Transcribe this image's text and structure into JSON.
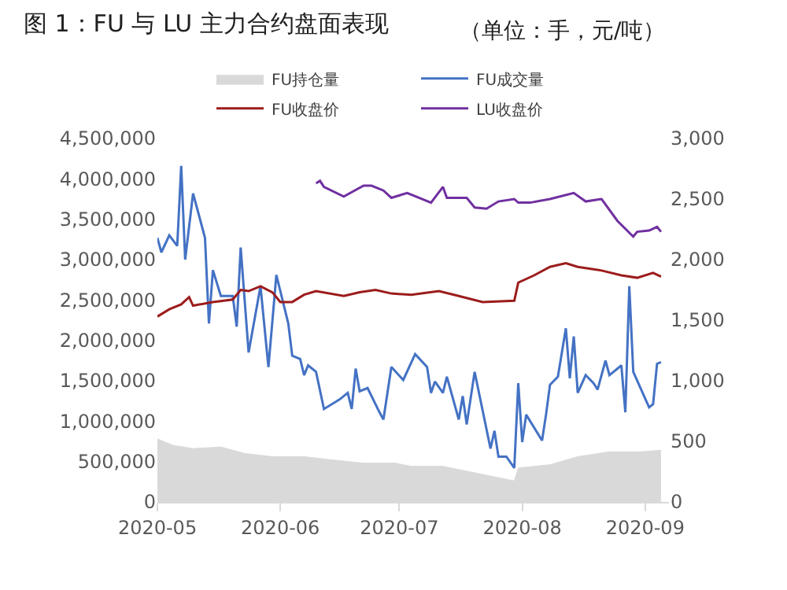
{
  "chart_data": {
    "type": "line",
    "title": "图 1：FU 与 LU 主力合约盘面表现",
    "subtitle": "（单位：手，元/吨）",
    "legend": "top",
    "grid": false,
    "marker": "none",
    "xlim": [
      "2020-05-01",
      "2020-09-07"
    ],
    "xticks": [
      {
        "value": "2020-05-01",
        "label": "2020-05"
      },
      {
        "value": "2020-06-01",
        "label": "2020-06"
      },
      {
        "value": "2020-07-01",
        "label": "2020-07"
      },
      {
        "value": "2020-08-01",
        "label": "2020-08"
      },
      {
        "value": "2020-09-01",
        "label": "2020-09"
      }
    ],
    "ylim": [
      0,
      4500000
    ],
    "yticks": [
      0,
      {
        "value": 500000,
        "label": "500,000"
      },
      {
        "value": 1000000,
        "label": "1,000,000"
      },
      {
        "value": 1500000,
        "label": "1,500,000"
      },
      {
        "value": 2000000,
        "label": "2,000,000"
      },
      {
        "value": 2500000,
        "label": "2,500,000"
      },
      {
        "value": 3000000,
        "label": "3,000,000"
      },
      {
        "value": 3500000,
        "label": "3,500,000"
      },
      {
        "value": 4000000,
        "label": "4,000,000"
      },
      {
        "value": 4500000,
        "label": "4,500,000"
      }
    ],
    "y2lim": [
      0,
      3000
    ],
    "y2ticks": [
      0,
      500,
      {
        "value": 1000,
        "label": "1,000"
      },
      {
        "value": 1500,
        "label": "1,500"
      },
      {
        "value": 2000,
        "label": "2,000"
      },
      {
        "value": 2500,
        "label": "2,500"
      },
      {
        "value": 3000,
        "label": "3,000"
      }
    ],
    "series": [
      {
        "name": "FU持仓量",
        "type": "area",
        "color": "#d9d9d9",
        "x": [
          "2020-05-01",
          "2020-05-05",
          "2020-05-10",
          "2020-05-17",
          "2020-05-23",
          "2020-05-30",
          "2020-06-07",
          "2020-06-14",
          "2020-06-22",
          "2020-06-30",
          "2020-07-04",
          "2020-07-12",
          "2020-07-20",
          "2020-07-30",
          "2020-07-31",
          "2020-08-08",
          "2020-08-15",
          "2020-08-23",
          "2020-08-31",
          "2020-09-05"
        ],
        "values": [
          780000,
          700000,
          660000,
          680000,
          600000,
          560000,
          560000,
          520000,
          480000,
          480000,
          440000,
          440000,
          360000,
          260000,
          420000,
          460000,
          560000,
          620000,
          620000,
          640000
        ]
      },
      {
        "name": "FU成交量",
        "color": "#4472c4",
        "x": [
          "2020-05-01",
          "2020-05-02",
          "2020-05-04",
          "2020-05-06",
          "2020-05-07",
          "2020-05-08",
          "2020-05-10",
          "2020-05-13",
          "2020-05-14",
          "2020-05-15",
          "2020-05-17",
          "2020-05-20",
          "2020-05-21",
          "2020-05-22",
          "2020-05-24",
          "2020-05-27",
          "2020-05-29",
          "2020-05-31",
          "2020-06-03",
          "2020-06-04",
          "2020-06-06",
          "2020-06-07",
          "2020-06-08",
          "2020-06-10",
          "2020-06-12",
          "2020-06-16",
          "2020-06-18",
          "2020-06-19",
          "2020-06-20",
          "2020-06-21",
          "2020-06-23",
          "2020-06-26",
          "2020-06-27",
          "2020-06-29",
          "2020-07-02",
          "2020-07-05",
          "2020-07-08",
          "2020-07-09",
          "2020-07-10",
          "2020-07-12",
          "2020-07-13",
          "2020-07-16",
          "2020-07-17",
          "2020-07-18",
          "2020-07-20",
          "2020-07-24",
          "2020-07-25",
          "2020-07-26",
          "2020-07-28",
          "2020-07-30",
          "2020-07-31",
          "2020-08-01",
          "2020-08-02",
          "2020-08-06",
          "2020-08-07",
          "2020-08-08",
          "2020-08-10",
          "2020-08-12",
          "2020-08-13",
          "2020-08-14",
          "2020-08-15",
          "2020-08-17",
          "2020-08-19",
          "2020-08-20",
          "2020-08-22",
          "2020-08-23",
          "2020-08-26",
          "2020-08-27",
          "2020-08-28",
          "2020-08-29",
          "2020-09-02",
          "2020-09-03",
          "2020-09-04",
          "2020-09-05"
        ],
        "values": [
          3270000,
          3090000,
          3300000,
          3170000,
          4160000,
          3000000,
          3820000,
          3270000,
          2210000,
          2870000,
          2550000,
          2550000,
          2170000,
          3150000,
          1850000,
          2670000,
          1670000,
          2810000,
          2210000,
          1810000,
          1770000,
          1570000,
          1690000,
          1610000,
          1150000,
          1270000,
          1350000,
          1150000,
          1650000,
          1370000,
          1410000,
          1110000,
          1020000,
          1670000,
          1510000,
          1830000,
          1670000,
          1350000,
          1490000,
          1350000,
          1550000,
          1020000,
          1310000,
          960000,
          1610000,
          660000,
          880000,
          560000,
          560000,
          420000,
          1470000,
          740000,
          1080000,
          760000,
          1080000,
          1450000,
          1550000,
          2150000,
          1530000,
          2050000,
          1350000,
          1570000,
          1470000,
          1390000,
          1750000,
          1570000,
          1690000,
          1110000,
          2670000,
          1610000,
          1170000,
          1210000,
          1710000,
          1730000
        ]
      },
      {
        "name": "FU收盘价",
        "axis": "y2",
        "color": "#9c1c1c",
        "x": [
          "2020-05-01",
          "2020-05-04",
          "2020-05-07",
          "2020-05-09",
          "2020-05-10",
          "2020-05-15",
          "2020-05-20",
          "2020-05-22",
          "2020-05-24",
          "2020-05-27",
          "2020-05-30",
          "2020-06-01",
          "2020-06-04",
          "2020-06-07",
          "2020-06-10",
          "2020-06-17",
          "2020-06-21",
          "2020-06-25",
          "2020-06-29",
          "2020-07-04",
          "2020-07-11",
          "2020-07-16",
          "2020-07-22",
          "2020-07-30",
          "2020-07-31",
          "2020-08-04",
          "2020-08-08",
          "2020-08-12",
          "2020-08-15",
          "2020-08-21",
          "2020-08-26",
          "2020-08-30",
          "2020-09-03",
          "2020-09-05"
        ],
        "values": [
          1530,
          1590,
          1630,
          1690,
          1620,
          1650,
          1670,
          1750,
          1740,
          1780,
          1730,
          1650,
          1650,
          1710,
          1740,
          1700,
          1730,
          1750,
          1720,
          1710,
          1740,
          1700,
          1650,
          1660,
          1810,
          1870,
          1940,
          1970,
          1940,
          1910,
          1870,
          1850,
          1890,
          1860
        ]
      },
      {
        "name": "LU收盘价",
        "axis": "y2",
        "color": "#7030a0",
        "x": [
          "2020-06-10",
          "2020-06-11",
          "2020-06-12",
          "2020-06-17",
          "2020-06-22",
          "2020-06-24",
          "2020-06-27",
          "2020-06-29",
          "2020-07-03",
          "2020-07-09",
          "2020-07-12",
          "2020-07-13",
          "2020-07-18",
          "2020-07-20",
          "2020-07-23",
          "2020-07-26",
          "2020-07-30",
          "2020-07-31",
          "2020-08-03",
          "2020-08-08",
          "2020-08-14",
          "2020-08-17",
          "2020-08-21",
          "2020-08-25",
          "2020-08-29",
          "2020-08-30",
          "2020-09-02",
          "2020-09-04",
          "2020-09-05"
        ],
        "values": [
          2630,
          2650,
          2600,
          2520,
          2610,
          2610,
          2570,
          2510,
          2550,
          2470,
          2600,
          2510,
          2510,
          2430,
          2420,
          2480,
          2500,
          2470,
          2470,
          2500,
          2550,
          2480,
          2500,
          2320,
          2190,
          2230,
          2240,
          2270,
          2230
        ]
      }
    ]
  }
}
